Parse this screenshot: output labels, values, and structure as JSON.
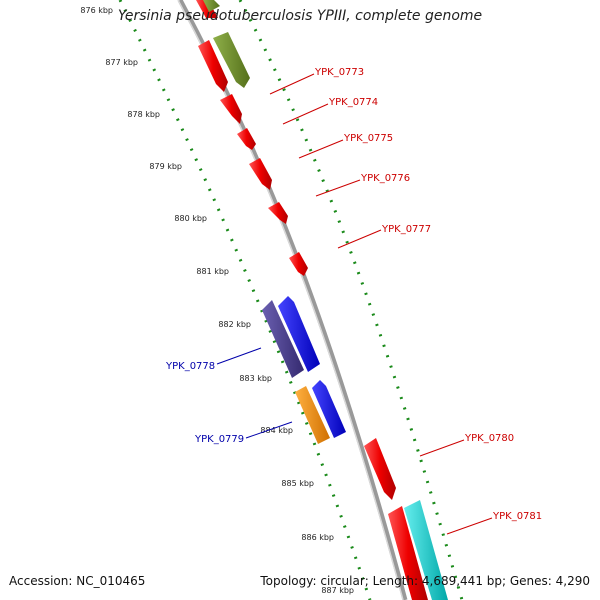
{
  "title": "Yersinia pseudotuberculosis YPIII, complete genome",
  "footer": {
    "accession": "Accession: NC_010465",
    "summary": "Topology: circular; Length: 4,689,441 bp; Genes: 4,290"
  },
  "ticks": [
    "876 kbp",
    "877 kbp",
    "878 kbp",
    "879 kbp",
    "880 kbp",
    "881 kbp",
    "882 kbp",
    "883 kbp",
    "884 kbp",
    "885 kbp",
    "886 kbp",
    "887 kbp"
  ],
  "colors": {
    "backbone": "#8c8c8c",
    "forward_label": "#cc0000",
    "reverse_label": "#0000aa",
    "dotted_track": "#1a8a1a",
    "gene_red": "#ee1111",
    "gene_olive": "#6b8e23",
    "gene_slate": "#4b3f8f",
    "gene_blue": "#1010ee",
    "gene_orange": "#f0900a",
    "gene_cyan": "#10cccc"
  },
  "genes": [
    {
      "label": "YPK_0773",
      "color": "#6b8e23",
      "side": "right",
      "track": 1
    },
    {
      "label": "YPK_0774",
      "color": "#ee1111",
      "side": "right",
      "track": 0
    },
    {
      "label": "YPK_0775",
      "color": "#ee1111",
      "side": "right",
      "track": 0
    },
    {
      "label": "YPK_0776",
      "color": "#ee1111",
      "side": "right",
      "track": 0
    },
    {
      "label": "YPK_0777",
      "color": "#ee1111",
      "side": "right",
      "track": 0
    },
    {
      "label": "YPK_0778",
      "color": "#4b3f8f",
      "side": "left",
      "track": -1
    },
    {
      "label": "YPK_0779",
      "color": "#f0900a",
      "side": "left",
      "track": -1
    },
    {
      "label": "YPK_0780",
      "color": "#ee1111",
      "side": "right",
      "track": 0
    },
    {
      "label": "YPK_0781",
      "color": "#10cccc",
      "side": "right",
      "track": 1
    }
  ]
}
